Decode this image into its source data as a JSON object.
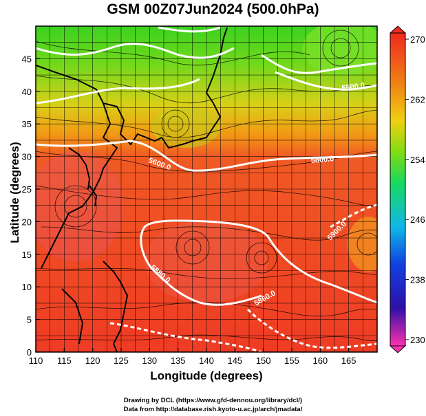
{
  "title": "GSM 00Z07Jun2024 (500.0hPa)",
  "xlabel": "Longitude (degrees)",
  "ylabel": "Latitude  (degrees)",
  "x_ticks": [
    "110",
    "115",
    "120",
    "125",
    "130",
    "135",
    "140",
    "145",
    "150",
    "155",
    "160",
    "165"
  ],
  "y_ticks": [
    "0",
    "5",
    "10",
    "15",
    "20",
    "25",
    "30",
    "35",
    "40",
    "45"
  ],
  "colorbar": {
    "labels": [
      "230",
      "238",
      "246",
      "254",
      "262",
      "270"
    ],
    "min": 230,
    "max": 270
  },
  "contour_labels": [
    "5500.0",
    "5600.0",
    "5800.0",
    "5900.0",
    "5880.0",
    "5860.0"
  ],
  "credits": {
    "line1": "Drawing by DCL (https://www.gfd-dennou.org/library/dcl/)",
    "line2": "Data from http://database.rish.kyoto-u.ac.jp/arch/jmadata/"
  },
  "colors": {
    "warm": "#f04a2a",
    "mid": "#f2a012",
    "cool": "#3cd220",
    "contour": "#ffffff",
    "coast": "#000000"
  }
}
